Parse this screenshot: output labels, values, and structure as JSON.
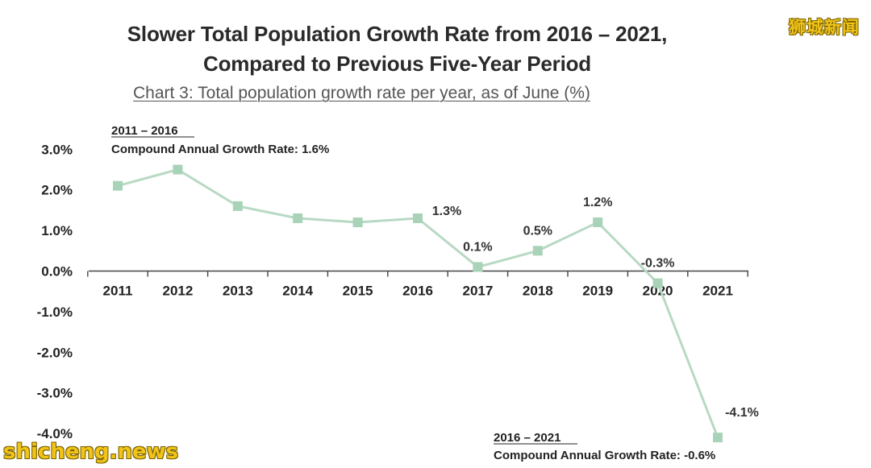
{
  "header": {
    "title_line1": "Slower Total Population Growth Rate from 2016 – 2021,",
    "title_line2": "Compared to Previous Five-Year Period",
    "subtitle": "Chart 3: Total population growth rate per year, as of June (%)"
  },
  "watermarks": {
    "top_right": "狮城新闻",
    "bottom_left": "shicheng.news"
  },
  "chart_data": {
    "type": "line",
    "title": "Slower Total Population Growth Rate from 2016 – 2021, Compared to Previous Five-Year Period",
    "subtitle": "Chart 3: Total population growth rate per year, as of June (%)",
    "x": [
      "2011",
      "2012",
      "2013",
      "2014",
      "2015",
      "2016",
      "2017",
      "2018",
      "2019",
      "2020",
      "2021"
    ],
    "series": [
      {
        "values": [
          2.1,
          2.5,
          1.6,
          1.3,
          1.2,
          1.3,
          0.1,
          0.5,
          1.2,
          -0.3,
          -4.1
        ]
      }
    ],
    "data_labels": [
      {
        "x": "2016",
        "label": "1.3%"
      },
      {
        "x": "2017",
        "label": "0.1%"
      },
      {
        "x": "2018",
        "label": "0.5%"
      },
      {
        "x": "2019",
        "label": "1.2%"
      },
      {
        "x": "2020",
        "label": "-0.3%"
      },
      {
        "x": "2021",
        "label": "-4.1%"
      }
    ],
    "y_ticks": [
      3,
      2,
      1,
      0,
      -1,
      -2,
      -3,
      -4
    ],
    "y_tick_labels": [
      "3.0%",
      "2.0%",
      "1.0%",
      "0.0%",
      "-1.0%",
      "-2.0%",
      "-3.0%",
      "-4.0%"
    ],
    "ylim": [
      -4.2,
      3.0
    ],
    "grid": false,
    "xlabel": "",
    "ylabel": "",
    "line_color": "#b8d9c4",
    "marker_color": "#a9d3b8",
    "annotations": [
      {
        "heading": "2011 – 2016",
        "text": "Compound Annual Growth Rate: 1.6%"
      },
      {
        "heading": "2016 – 2021",
        "text": "Compound Annual Growth Rate: -0.6%"
      }
    ]
  }
}
